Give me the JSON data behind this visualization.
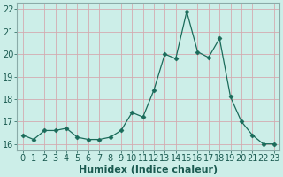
{
  "x": [
    0,
    1,
    2,
    3,
    4,
    5,
    6,
    7,
    8,
    9,
    10,
    11,
    12,
    13,
    14,
    15,
    16,
    17,
    18,
    19,
    20,
    21,
    22,
    23
  ],
  "y": [
    16.4,
    16.2,
    16.6,
    16.6,
    16.7,
    16.3,
    16.2,
    16.2,
    16.3,
    16.6,
    17.4,
    17.2,
    18.4,
    20.0,
    19.8,
    21.9,
    20.1,
    19.85,
    20.7,
    18.1,
    17.0,
    16.4,
    16.0,
    16.0
  ],
  "xlabel": "Humidex (Indice chaleur)",
  "ylim": [
    15.7,
    22.3
  ],
  "xlim": [
    -0.5,
    23.5
  ],
  "yticks": [
    16,
    17,
    18,
    19,
    20,
    21,
    22
  ],
  "xticks": [
    0,
    1,
    2,
    3,
    4,
    5,
    6,
    7,
    8,
    9,
    10,
    11,
    12,
    13,
    14,
    15,
    16,
    17,
    18,
    19,
    20,
    21,
    22,
    23
  ],
  "line_color": "#1a6b5a",
  "marker": "D",
  "marker_size": 2.5,
  "bg_color": "#cceee8",
  "grid_color": "#d4aab0",
  "spine_color": "#8aaba8",
  "tick_color": "#1a5a50",
  "label_color": "#1a5a50",
  "xlabel_fontsize": 8,
  "tick_fontsize": 7
}
